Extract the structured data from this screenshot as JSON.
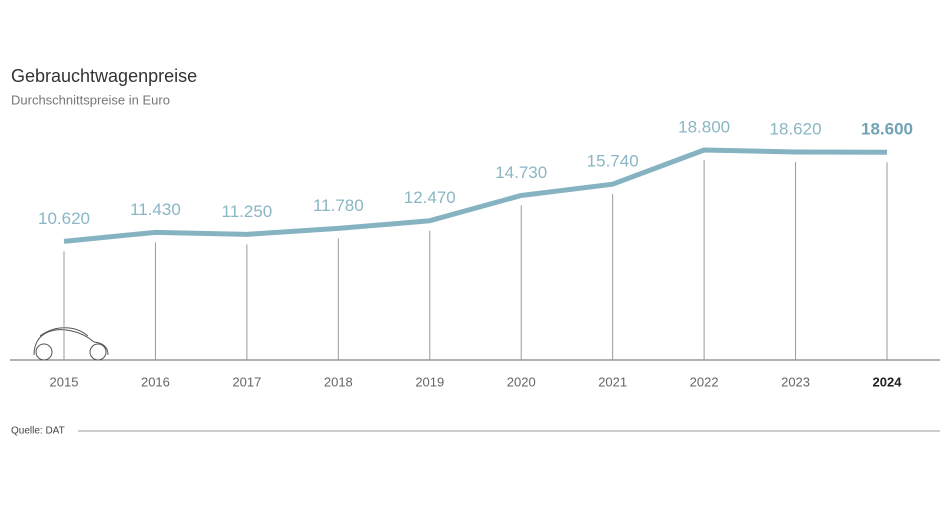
{
  "chart_data": {
    "type": "line",
    "title": "Gebrauchtwagenpreise",
    "subtitle": "Durchschnittspreise in Euro",
    "categories": [
      "2015",
      "2016",
      "2017",
      "2018",
      "2019",
      "2020",
      "2021",
      "2022",
      "2023",
      "2024"
    ],
    "values": [
      10620,
      11430,
      11250,
      11780,
      12470,
      14730,
      15740,
      18800,
      18620,
      18600
    ],
    "value_labels": [
      "10.620",
      "11.430",
      "11.250",
      "11.780",
      "12.470",
      "14.730",
      "15.740",
      "18.800",
      "18.620",
      "18.600"
    ],
    "color": "#86b3c1",
    "ylim": [
      0,
      20000
    ],
    "source": "Quelle: DAT"
  }
}
